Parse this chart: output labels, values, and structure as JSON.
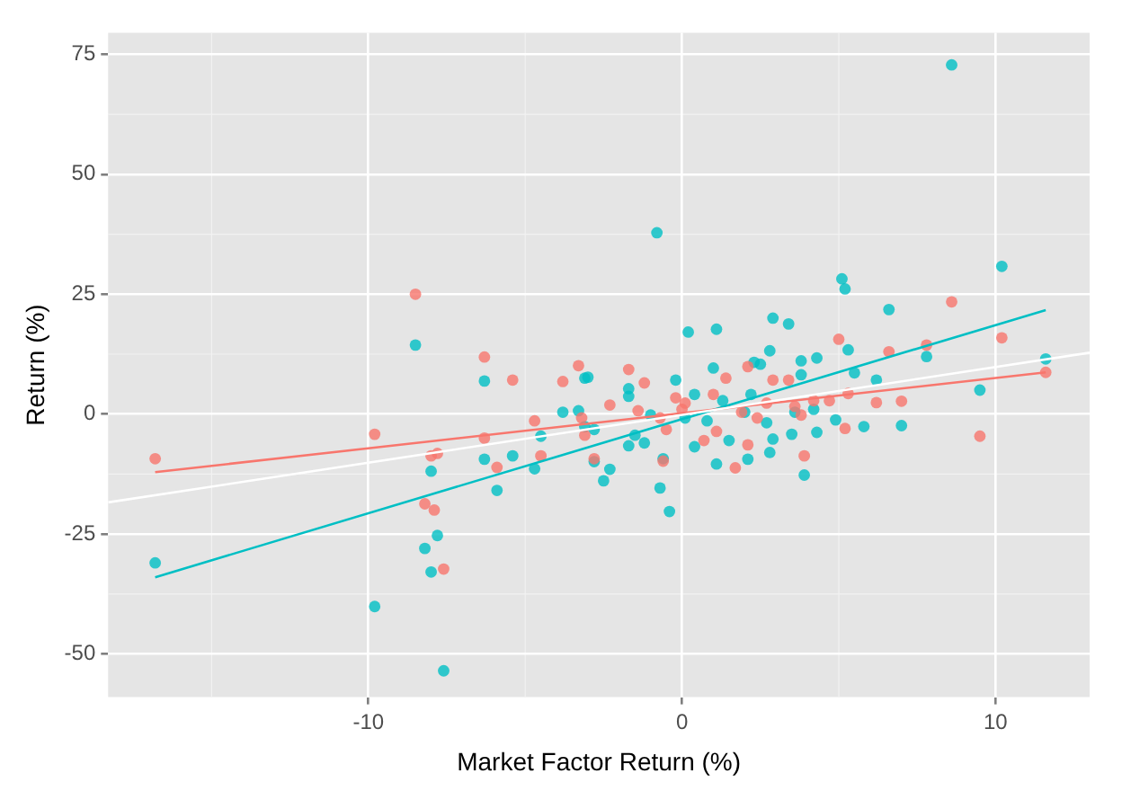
{
  "chart_data": {
    "type": "scatter",
    "xlabel": "Market Factor Return (%)",
    "ylabel": "Return (%)",
    "xlim": [
      -18.3,
      13
    ],
    "ylim": [
      -59,
      79.5
    ],
    "xticks": [
      -10,
      0,
      10
    ],
    "yticks": [
      -50,
      -25,
      0,
      25,
      50,
      75
    ],
    "grid": true,
    "marker": "circle",
    "series": [
      {
        "type": "line",
        "color": "#ffffff",
        "x": [
          -18.3,
          13
        ],
        "values": [
          -18.4,
          12.8
        ],
        "marker": "none"
      },
      {
        "color": "#f8766d",
        "x": [
          -16.8,
          -8.5,
          -9.8,
          -6.3,
          -5.4,
          -3.8,
          -3.3,
          -4.7,
          -3.2,
          -3.1,
          -6.3,
          -8.0,
          -7.8,
          -4.5,
          -5.9,
          -2.8,
          -8.2,
          -7.9,
          -7.6,
          8.6,
          5.0,
          10.2,
          7.8,
          11.6,
          9.5,
          6.6,
          7.0,
          6.2,
          5.2,
          5.3,
          4.7,
          3.9,
          3.4,
          2.9,
          2.1,
          2.1,
          1.7,
          1.1,
          0.7,
          1.4,
          -0.2,
          0.1,
          -0.5,
          -0.6,
          -1.2,
          -1.7,
          -2.3,
          -1.4,
          -0.7,
          1.9,
          1.0,
          2.7,
          3.6,
          4.2,
          2.4,
          3.8,
          0.0
        ],
        "values": [
          -9.3,
          25,
          -4.2,
          11.9,
          7.1,
          6.8,
          10.1,
          -1.4,
          -0.8,
          -4.4,
          -5.0,
          -8.7,
          -8.2,
          -8.7,
          -11.1,
          -9.3,
          -18.7,
          -20,
          -32.3,
          23.4,
          15.6,
          15.9,
          14.4,
          8.7,
          -4.6,
          13.0,
          2.7,
          2.4,
          -3.0,
          4.3,
          2.8,
          -8.7,
          7.1,
          7.1,
          9.9,
          -6.4,
          -11.2,
          -3.6,
          -5.5,
          7.5,
          3.4,
          2.3,
          -3.2,
          -9.8,
          6.5,
          9.3,
          1.9,
          0.7,
          -0.8,
          0.4,
          4.1,
          2.3,
          1.6,
          2.8,
          -0.8,
          -0.2,
          1.0
        ]
      },
      {
        "color": "#00bfc4",
        "x": [
          -16.8,
          -8.5,
          -6.3,
          -3.1,
          -3.8,
          -3.3,
          -3.1,
          -2.8,
          -4.5,
          -6.3,
          -5.4,
          -4.7,
          -8.0,
          -5.9,
          -2.8,
          -7.8,
          -8.2,
          -8.0,
          -9.8,
          -7.6,
          -2.5,
          8.6,
          -0.8,
          10.2,
          5.1,
          5.2,
          6.6,
          0.2,
          1.1,
          2.9,
          3.4,
          5.3,
          2.8,
          11.6,
          9.5,
          7.8,
          7.0,
          6.2,
          5.8,
          5.5,
          4.9,
          4.3,
          3.8,
          3.8,
          4.3,
          3.9,
          3.5,
          2.8,
          2.9,
          2.5,
          2.3,
          2.1,
          1.5,
          1.1,
          0.4,
          1.0,
          0.4,
          -0.2,
          0.1,
          -0.6,
          -0.7,
          -0.4,
          -1.7,
          -1.7,
          -2.3,
          -1.7,
          -1.2,
          -1.0,
          -1.5,
          2.0,
          1.3,
          3.6,
          4.2,
          0.8,
          2.7,
          2.2,
          -3.0
        ],
        "values": [
          -31,
          14.4,
          6.9,
          7.5,
          0.4,
          0.7,
          -2.6,
          -3.2,
          -4.6,
          -9.4,
          -8.7,
          -11.4,
          -11.9,
          -15.9,
          -9.9,
          -25.3,
          -28,
          -32.9,
          -40.1,
          -53.5,
          -13.9,
          72.8,
          37.8,
          30.8,
          28.2,
          26.1,
          21.8,
          17.1,
          17.7,
          20,
          18.8,
          13.4,
          13.2,
          11.5,
          5.0,
          12.0,
          -2.4,
          7.1,
          -2.6,
          8.6,
          -1.2,
          11.7,
          11.1,
          8.2,
          -3.8,
          -12.7,
          -4.2,
          -8.0,
          -5.2,
          10.4,
          10.8,
          -9.4,
          -5.5,
          -10.4,
          -6.8,
          9.6,
          4.1,
          7.1,
          -0.8,
          -9.3,
          -15.4,
          -20.3,
          5.3,
          3.7,
          -11.5,
          -6.6,
          -6.0,
          -0.2,
          -4.4,
          0.4,
          2.8,
          0.4,
          1.0,
          -1.4,
          -1.8,
          4.1,
          7.7
        ]
      },
      {
        "type": "line",
        "color": "#f8766d",
        "x": [
          -16.8,
          11.6
        ],
        "values": [
          -12.1,
          8.7
        ],
        "marker": "none"
      },
      {
        "type": "line",
        "color": "#00bfc4",
        "x": [
          -16.8,
          11.6
        ],
        "values": [
          -34.0,
          21.7
        ],
        "marker": "none"
      }
    ]
  }
}
